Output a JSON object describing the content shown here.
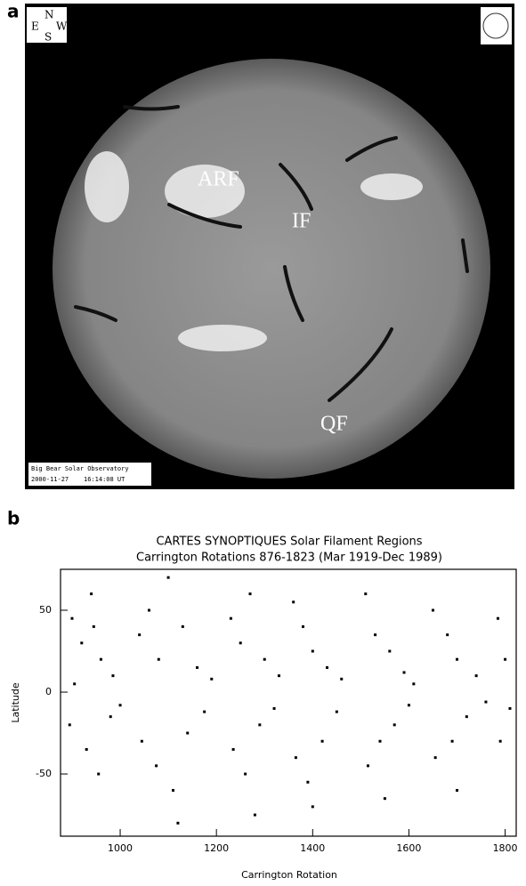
{
  "panel_a": {
    "label": "a",
    "compass": {
      "north": "N",
      "east": "E",
      "south": "S",
      "west": "W"
    },
    "annotations": [
      "ARF",
      "IF",
      "QF"
    ],
    "footer": [
      "Big Bear Solar Observatory",
      "2000-11-27    16:14:08 UT"
    ]
  },
  "chart_data": {
    "type": "scatter",
    "panel_label": "b",
    "title": "CARTES SYNOPTIQUES Solar Filament Regions",
    "subtitle": "Carrington Rotations 876-1823 (Mar 1919-Dec 1989)",
    "x_label": "Carrington Rotation",
    "y_label": "Latitude",
    "xlim": [
      876,
      1823
    ],
    "ylim": [
      -88,
      75
    ],
    "xticks": [
      1000,
      1200,
      1400,
      1600,
      1800
    ],
    "yticks": [
      -50,
      0,
      50
    ],
    "color": "#000000",
    "x": [
      900,
      920,
      940,
      960,
      985,
      895,
      930,
      955,
      980,
      1000,
      905,
      945,
      1040,
      1060,
      1080,
      1100,
      1130,
      1160,
      1190,
      1045,
      1075,
      1110,
      1140,
      1175,
      1120,
      1230,
      1250,
      1270,
      1300,
      1330,
      1235,
      1260,
      1290,
      1320,
      1280,
      1360,
      1380,
      1400,
      1430,
      1460,
      1365,
      1390,
      1420,
      1450,
      1400,
      1510,
      1530,
      1560,
      1590,
      1610,
      1515,
      1540,
      1570,
      1600,
      1550,
      1650,
      1680,
      1700,
      1740,
      1655,
      1690,
      1720,
      1760,
      1700,
      1785,
      1800,
      1790,
      1810
    ],
    "y": [
      45,
      30,
      60,
      20,
      10,
      -20,
      -35,
      -50,
      -15,
      -8,
      5,
      40,
      35,
      50,
      20,
      70,
      40,
      15,
      8,
      -30,
      -45,
      -60,
      -25,
      -12,
      -80,
      45,
      30,
      60,
      20,
      10,
      -35,
      -50,
      -20,
      -10,
      -75,
      55,
      40,
      25,
      15,
      8,
      -40,
      -55,
      -30,
      -12,
      -70,
      60,
      35,
      25,
      12,
      5,
      -45,
      -30,
      -20,
      -8,
      -65,
      50,
      35,
      20,
      10,
      -40,
      -30,
      -15,
      -6,
      -60,
      45,
      20,
      -30,
      -10
    ]
  }
}
